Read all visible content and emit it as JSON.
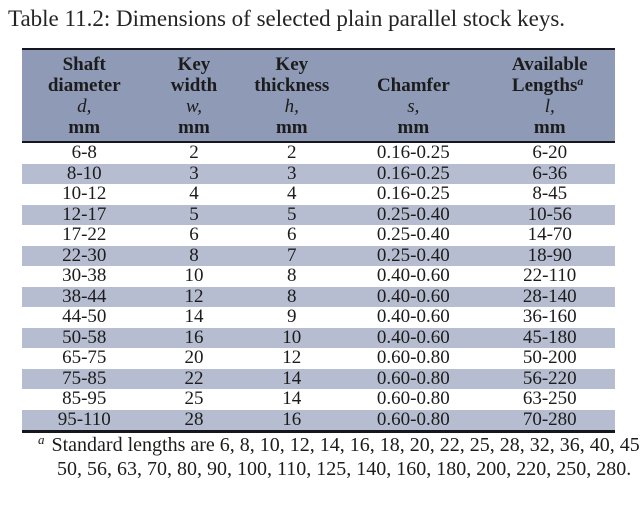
{
  "caption": "Table 11.2: Dimensions of selected plain parallel stock keys.",
  "colors": {
    "header_bg": "#8e9ab6",
    "stripe_bg": "#b7bdd0",
    "border": "#16161f",
    "text": "#1c1c1c"
  },
  "table": {
    "columns": [
      {
        "id": "shaft-diameter",
        "lines": [
          "Shaft",
          "diameter"
        ],
        "symbol": "d,",
        "unit": "mm"
      },
      {
        "id": "key-width",
        "lines": [
          "Key",
          "width"
        ],
        "symbol": "w,",
        "unit": "mm"
      },
      {
        "id": "key-thickness",
        "lines": [
          "Key",
          "thickness"
        ],
        "symbol": "h,",
        "unit": "mm"
      },
      {
        "id": "chamfer",
        "lines": [
          "Chamfer"
        ],
        "symbol": "s,",
        "unit": "mm"
      },
      {
        "id": "available-lengths",
        "lines": [
          "Available",
          "Lengths"
        ],
        "sup": "a",
        "words_align": "left",
        "symbol": "l,",
        "unit": "mm"
      }
    ],
    "rows": [
      [
        "6-8",
        "2",
        "2",
        "0.16-0.25",
        "6-20"
      ],
      [
        "8-10",
        "3",
        "3",
        "0.16-0.25",
        "6-36"
      ],
      [
        "10-12",
        "4",
        "4",
        "0.16-0.25",
        "8-45"
      ],
      [
        "12-17",
        "5",
        "5",
        "0.25-0.40",
        "10-56"
      ],
      [
        "17-22",
        "6",
        "6",
        "0.25-0.40",
        "14-70"
      ],
      [
        "22-30",
        "8",
        "7",
        "0.25-0.40",
        "18-90"
      ],
      [
        "30-38",
        "10",
        "8",
        "0.40-0.60",
        "22-110"
      ],
      [
        "38-44",
        "12",
        "8",
        "0.40-0.60",
        "28-140"
      ],
      [
        "44-50",
        "14",
        "9",
        "0.40-0.60",
        "36-160"
      ],
      [
        "50-58",
        "16",
        "10",
        "0.40-0.60",
        "45-180"
      ],
      [
        "65-75",
        "20",
        "12",
        "0.60-0.80",
        "50-200"
      ],
      [
        "75-85",
        "22",
        "14",
        "0.60-0.80",
        "56-220"
      ],
      [
        "85-95",
        "25",
        "14",
        "0.60-0.80",
        "63-250"
      ],
      [
        "95-110",
        "28",
        "16",
        "0.60-0.80",
        "70-280"
      ]
    ]
  },
  "footnote": {
    "marker": "a",
    "text": "Standard lengths are 6, 8, 10, 12, 14, 16, 18, 20, 22, 25, 28, 32, 36, 40, 45, 50, 56, 63, 70, 80, 90, 100, 110, 125, 140, 160, 180, 200, 220, 250, 280."
  }
}
